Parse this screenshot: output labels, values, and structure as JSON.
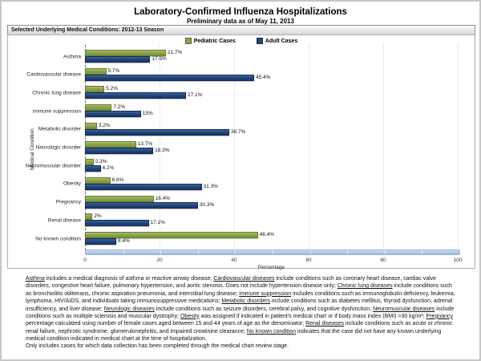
{
  "header": {
    "title": "Laboratory-Confirmed Influenza Hospitalizations",
    "subtitle": "Preliminary data as of May 11, 2013",
    "panel_title": "Selected Underlying Medical Conditions: 2012-13 Season"
  },
  "legend": [
    {
      "label": "Pediatric Cases",
      "color": "#8CA44C"
    },
    {
      "label": "Adult Cases",
      "color": "#24477C"
    }
  ],
  "chart_data": {
    "type": "bar",
    "orientation": "horizontal",
    "title": "Selected Underlying Medical Conditions: 2012-13 Season",
    "xlabel": "Percentage",
    "ylabel": "Medical Condition",
    "xlim": [
      0,
      100
    ],
    "xticks": [
      "0",
      "20",
      "40",
      "60",
      "80",
      "100"
    ],
    "grid": "faint vertical dotted",
    "legend_position": "top-center",
    "categories": [
      "Asthma",
      "Cardiovascular disease",
      "Chronic lung disease",
      "Immune suppression",
      "Metabolic disorder",
      "Neurologic disorder",
      "Neuromuscular disorder",
      "Obesity",
      "Pregnancy",
      "Renal disease",
      "No known condition"
    ],
    "series": [
      {
        "name": "Pediatric Cases",
        "color": "#8CA44C",
        "border_color": "#647f2e",
        "values": [
          21.7,
          5.7,
          5.2,
          7.2,
          3.2,
          13.7,
          2.3,
          6.8,
          18.4,
          2,
          46.4
        ],
        "labels": [
          "21.7%",
          "5.7%",
          "5.2%",
          "7.2%",
          "3.2%",
          "13.7%",
          "2.3%",
          "6.8%",
          "18.4%",
          "2%",
          "46.4%"
        ]
      },
      {
        "name": "Adult Cases",
        "color": "#24477C",
        "border_color": "#142c52",
        "values": [
          17.5,
          45.4,
          27.1,
          15,
          38.7,
          18.3,
          4.2,
          31.3,
          30.3,
          17.1,
          8.4
        ],
        "labels": [
          "17.5%",
          "45.4%",
          "27.1%",
          "15%",
          "38.7%",
          "18.3%",
          "4.2%",
          "31.3%",
          "30.3%",
          "17.1%",
          "8.4%"
        ]
      }
    ],
    "scrollbar_color": "#AEC7E5"
  },
  "footnote": {
    "segments": [
      {
        "u": true,
        "t": "Asthma"
      },
      {
        "u": false,
        "t": " includes a medical diagnosis of asthma or reactive airway disease; "
      },
      {
        "u": true,
        "t": "Cardiovascular diseases"
      },
      {
        "u": false,
        "t": " include conditions such as coronary heart disease, cardiac valve disorders, congestive heart failure, pulmonary hypertension, and aortic stenosis.  Does not include hypertension disease only;  "
      },
      {
        "u": true,
        "t": "Chronic lung diseases"
      },
      {
        "u": false,
        "t": " include conditions such as bronchiolitis obliterans, chronic aspiration pneumonia, and interstitial lung disease;  "
      },
      {
        "u": true,
        "t": "Immune suppression"
      },
      {
        "u": false,
        "t": " includes conditions such as immunoglobulin deficiency, leukemia, lymphoma, HIV/AIDS, and individuals taking immunosuppressive medications;  "
      },
      {
        "u": true,
        "t": "Metabolic disorders"
      },
      {
        "u": false,
        "t": " include conditions such as diabetes mellitus, thyroid dysfunction, adrenal insufficiency, and liver disease;  "
      },
      {
        "u": true,
        "t": "Neurologic diseases"
      },
      {
        "u": false,
        "t": " include conditions such as seizure disorders, cerebral palsy, and cognitive dysfunction;  "
      },
      {
        "u": true,
        "t": "Neuromuscular diseases"
      },
      {
        "u": false,
        "t": " include conditions such as multiple sclerosis and muscular dystrophy;  "
      },
      {
        "u": true,
        "t": "Obesity"
      },
      {
        "u": false,
        "t": " was assigned if indicated in patient's medical chart or if body mass index (BMI) >30 kg/m²;  "
      },
      {
        "u": true,
        "t": "Pregnancy"
      },
      {
        "u": false,
        "t": " percentage calculated using number of female cases aged between 15 and 44 years of age as the denominator;  "
      },
      {
        "u": true,
        "t": "Renal diseases"
      },
      {
        "u": false,
        "t": " include conditions such as acute or chronic renal failure, nephrotic syndrome, glomerulonephritis, and impaired creatinine clearance;  "
      },
      {
        "u": true,
        "t": "No known condition"
      },
      {
        "u": false,
        "t": " indicates that the case did not have any known underlying medical condition indicated in medical chart at the time of hospitalization."
      }
    ],
    "line2": "Only includes cases for which data collection has been completed through the medical chart review stage."
  }
}
